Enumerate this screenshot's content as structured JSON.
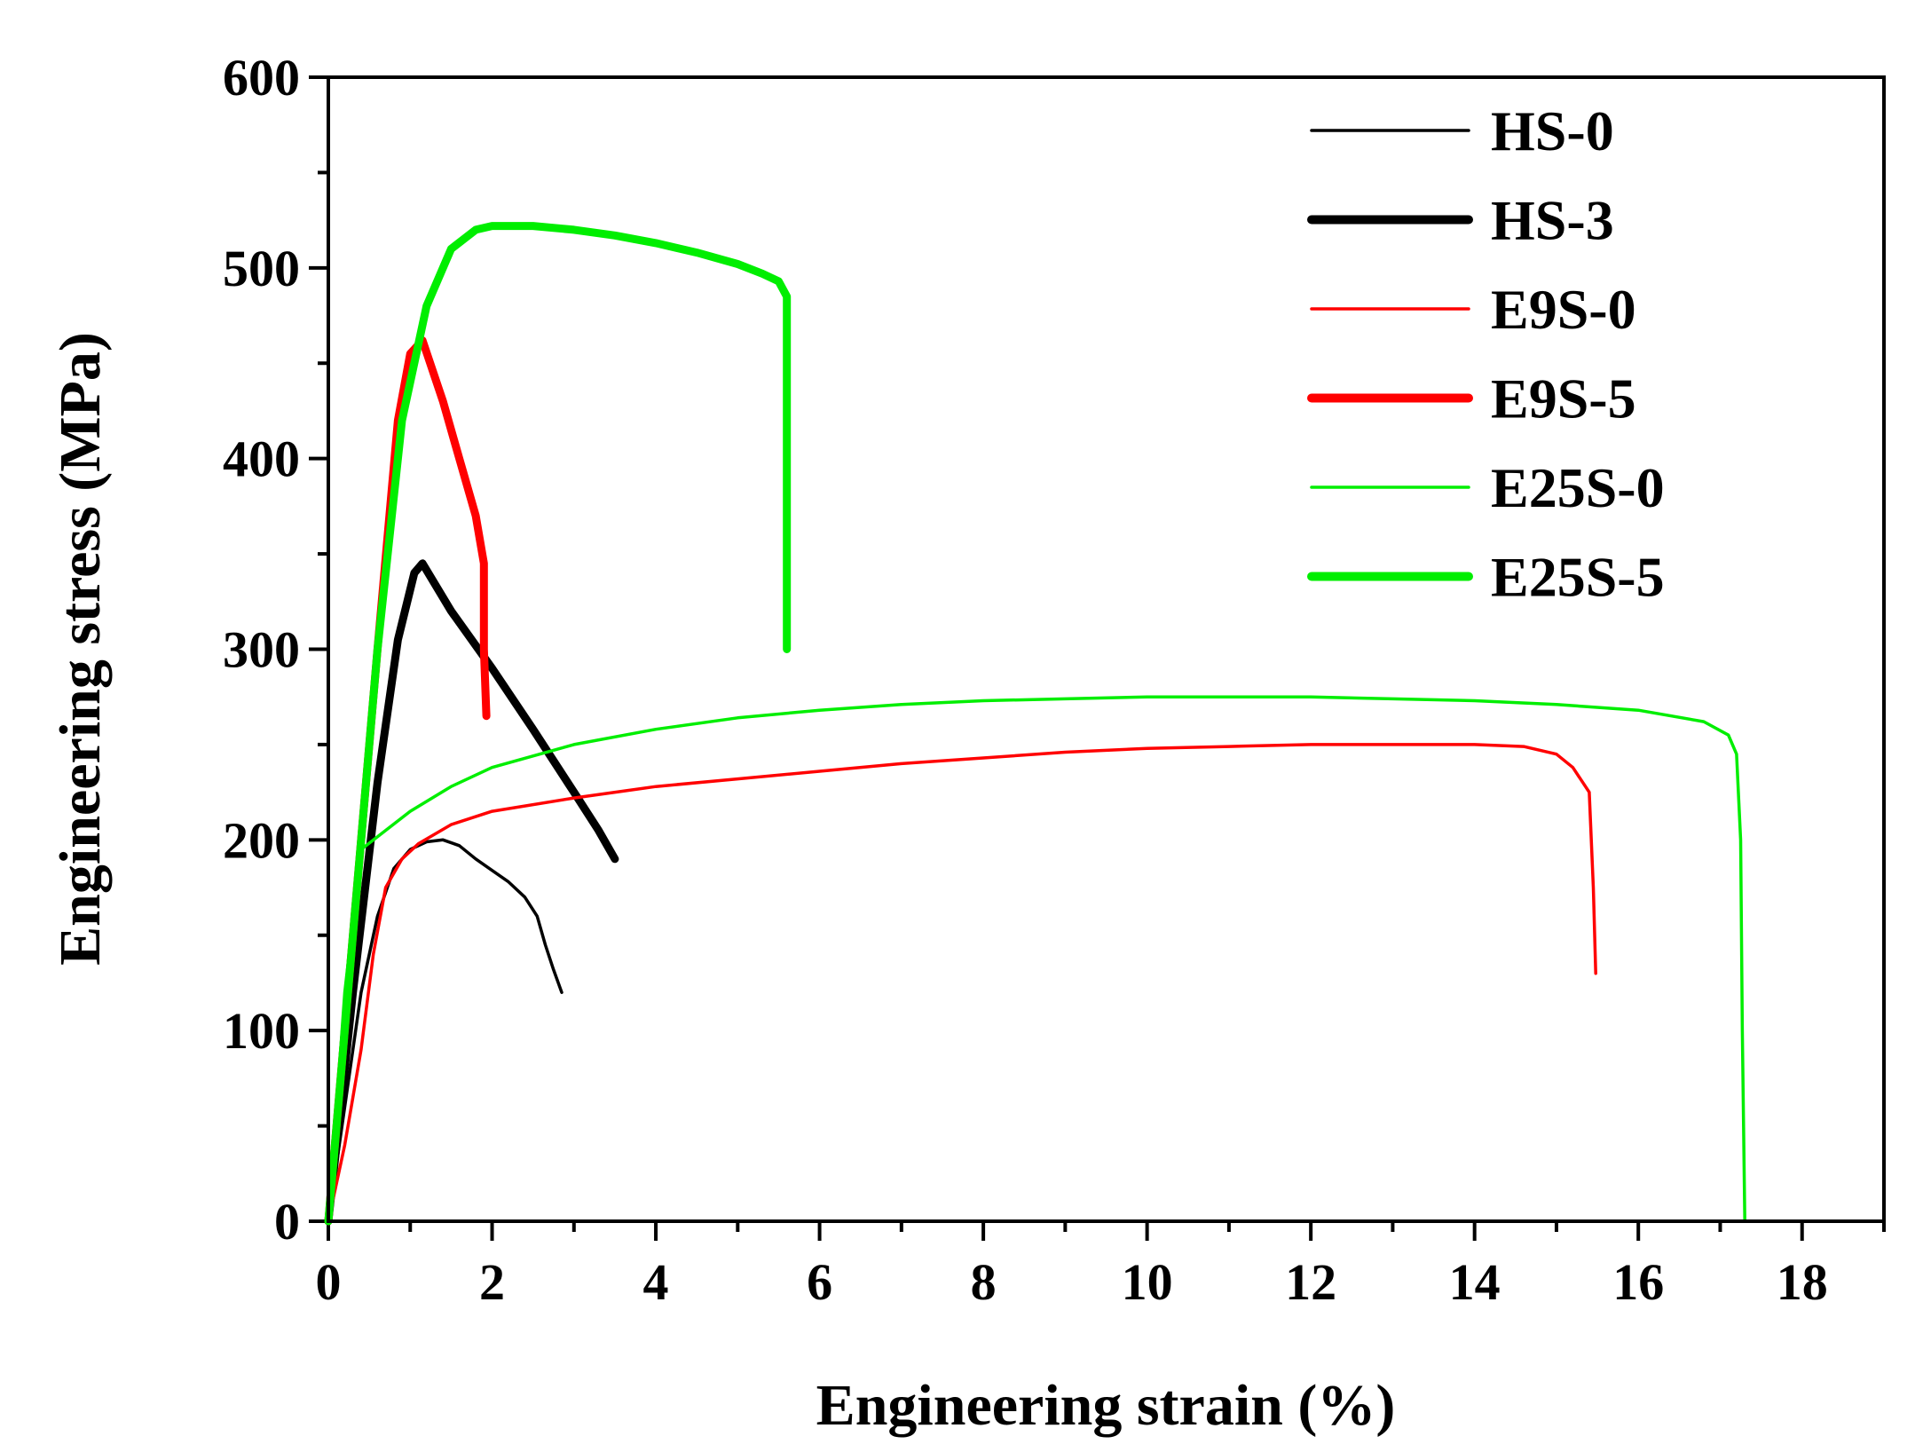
{
  "chart_data": {
    "type": "line",
    "title": "",
    "xlabel": "Engineering strain (%)",
    "ylabel": "Engineering stress (MPa)",
    "xlim": [
      0,
      19
    ],
    "ylim": [
      0,
      600
    ],
    "xticks": [
      0,
      2,
      4,
      6,
      8,
      10,
      12,
      14,
      16,
      18
    ],
    "xtick_labels": [
      "0",
      "2",
      "4",
      "6",
      "8",
      "10",
      "12",
      "14",
      "16",
      "18"
    ],
    "yticks": [
      0,
      100,
      200,
      300,
      400,
      500,
      600
    ],
    "ytick_labels": [
      "0",
      "100",
      "200",
      "300",
      "400",
      "500",
      "600"
    ],
    "legend_position": "top-right",
    "grid": false,
    "series": [
      {
        "name": "HS-0",
        "color": "#000000",
        "weight": "thin",
        "points": [
          [
            0,
            0
          ],
          [
            0.2,
            60
          ],
          [
            0.4,
            120
          ],
          [
            0.6,
            160
          ],
          [
            0.8,
            185
          ],
          [
            1.0,
            195
          ],
          [
            1.2,
            199
          ],
          [
            1.4,
            200
          ],
          [
            1.6,
            197
          ],
          [
            1.8,
            190
          ],
          [
            2.0,
            184
          ],
          [
            2.2,
            178
          ],
          [
            2.4,
            170
          ],
          [
            2.55,
            160
          ],
          [
            2.65,
            145
          ],
          [
            2.75,
            132
          ],
          [
            2.85,
            120
          ]
        ]
      },
      {
        "name": "HS-3",
        "color": "#000000",
        "weight": "thick",
        "points": [
          [
            0,
            0
          ],
          [
            0.3,
            120
          ],
          [
            0.6,
            230
          ],
          [
            0.85,
            305
          ],
          [
            1.05,
            340
          ],
          [
            1.15,
            345
          ],
          [
            1.5,
            320
          ],
          [
            2.0,
            290
          ],
          [
            2.5,
            258
          ],
          [
            3.0,
            225
          ],
          [
            3.3,
            205
          ],
          [
            3.5,
            190
          ]
        ]
      },
      {
        "name": "E9S-0",
        "color": "#ff0000",
        "weight": "thin",
        "points": [
          [
            0,
            0
          ],
          [
            0.2,
            40
          ],
          [
            0.4,
            90
          ],
          [
            0.55,
            140
          ],
          [
            0.7,
            175
          ],
          [
            0.9,
            190
          ],
          [
            1.1,
            198
          ],
          [
            1.5,
            208
          ],
          [
            2,
            215
          ],
          [
            3,
            222
          ],
          [
            4,
            228
          ],
          [
            5,
            232
          ],
          [
            6,
            236
          ],
          [
            7,
            240
          ],
          [
            8,
            243
          ],
          [
            9,
            246
          ],
          [
            10,
            248
          ],
          [
            11,
            249
          ],
          [
            12,
            250
          ],
          [
            13,
            250
          ],
          [
            14,
            250
          ],
          [
            14.6,
            249
          ],
          [
            15.0,
            245
          ],
          [
            15.2,
            238
          ],
          [
            15.4,
            225
          ],
          [
            15.45,
            175
          ],
          [
            15.48,
            130
          ]
        ]
      },
      {
        "name": "E9S-5",
        "color": "#ff0000",
        "weight": "thick",
        "points": [
          [
            0,
            0
          ],
          [
            0.3,
            150
          ],
          [
            0.6,
            300
          ],
          [
            0.85,
            420
          ],
          [
            1.0,
            455
          ],
          [
            1.15,
            462
          ],
          [
            1.4,
            430
          ],
          [
            1.6,
            400
          ],
          [
            1.8,
            370
          ],
          [
            1.9,
            345
          ],
          [
            1.9,
            300
          ],
          [
            1.93,
            265
          ]
        ]
      },
      {
        "name": "E25S-0",
        "color": "#00ee00",
        "weight": "thin",
        "points": [
          [
            0,
            0
          ],
          [
            0.2,
            120
          ],
          [
            0.4,
            195
          ],
          [
            0.7,
            205
          ],
          [
            1.0,
            215
          ],
          [
            1.5,
            228
          ],
          [
            2,
            238
          ],
          [
            3,
            250
          ],
          [
            4,
            258
          ],
          [
            5,
            264
          ],
          [
            6,
            268
          ],
          [
            7,
            271
          ],
          [
            8,
            273
          ],
          [
            9,
            274
          ],
          [
            10,
            275
          ],
          [
            11,
            275
          ],
          [
            12,
            275
          ],
          [
            13,
            274
          ],
          [
            14,
            273
          ],
          [
            15,
            271
          ],
          [
            16,
            268
          ],
          [
            16.8,
            262
          ],
          [
            17.1,
            255
          ],
          [
            17.2,
            245
          ],
          [
            17.25,
            200
          ],
          [
            17.27,
            100
          ],
          [
            17.3,
            0
          ]
        ]
      },
      {
        "name": "E25S-5",
        "color": "#00ee00",
        "weight": "thick",
        "points": [
          [
            0,
            0
          ],
          [
            0.3,
            150
          ],
          [
            0.6,
            300
          ],
          [
            0.9,
            420
          ],
          [
            1.2,
            480
          ],
          [
            1.5,
            510
          ],
          [
            1.8,
            520
          ],
          [
            2.0,
            522
          ],
          [
            2.5,
            522
          ],
          [
            3,
            520
          ],
          [
            3.5,
            517
          ],
          [
            4,
            513
          ],
          [
            4.5,
            508
          ],
          [
            5,
            502
          ],
          [
            5.3,
            497
          ],
          [
            5.5,
            493
          ],
          [
            5.6,
            485
          ],
          [
            5.6,
            400
          ],
          [
            5.6,
            300
          ]
        ]
      }
    ]
  }
}
